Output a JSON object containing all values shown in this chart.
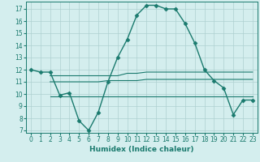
{
  "xlabel": "Humidex (Indice chaleur)",
  "line1": {
    "x": [
      0,
      1,
      2,
      3,
      4,
      5,
      6,
      7,
      8,
      9,
      10,
      11,
      12,
      13,
      14,
      15,
      16,
      17,
      18,
      19,
      20,
      21,
      22,
      23
    ],
    "y": [
      12,
      11.8,
      11.8,
      9.9,
      10.1,
      7.8,
      7.0,
      8.5,
      11.0,
      13.0,
      14.5,
      16.5,
      17.3,
      17.3,
      17.0,
      17.0,
      15.8,
      14.2,
      12.0,
      11.1,
      10.5,
      8.3,
      9.5,
      9.5
    ],
    "color": "#1a7a6e",
    "marker": "D",
    "markersize": 2.5,
    "linewidth": 1.0
  },
  "line2": {
    "x": [
      2,
      3,
      4,
      5,
      6,
      7,
      8,
      9,
      10,
      11,
      12,
      13,
      14,
      15,
      16,
      17,
      18,
      19,
      20,
      21,
      22,
      23
    ],
    "y": [
      11.0,
      11.0,
      11.0,
      11.0,
      11.0,
      11.0,
      11.1,
      11.1,
      11.1,
      11.1,
      11.2,
      11.2,
      11.2,
      11.2,
      11.2,
      11.2,
      11.2,
      11.2,
      11.2,
      11.2,
      11.2,
      11.2
    ],
    "color": "#1a7a6e",
    "linewidth": 0.8
  },
  "line3": {
    "x": [
      2,
      3,
      4,
      5,
      6,
      7,
      8,
      9,
      10,
      11,
      12,
      13,
      14,
      15,
      16,
      17,
      18,
      19,
      20,
      21,
      22,
      23
    ],
    "y": [
      9.8,
      9.8,
      9.8,
      9.8,
      9.8,
      9.8,
      9.8,
      9.8,
      9.8,
      9.8,
      9.8,
      9.8,
      9.8,
      9.8,
      9.8,
      9.8,
      9.8,
      9.8,
      9.8,
      9.8,
      9.8,
      9.8
    ],
    "color": "#1a7a6e",
    "linewidth": 0.8
  },
  "line4": {
    "x": [
      2,
      3,
      4,
      5,
      6,
      7,
      8,
      9,
      10,
      11,
      12,
      13,
      14,
      15,
      16,
      17,
      18,
      19,
      20,
      21,
      22,
      23
    ],
    "y": [
      11.5,
      11.5,
      11.5,
      11.5,
      11.5,
      11.5,
      11.5,
      11.5,
      11.7,
      11.7,
      11.8,
      11.8,
      11.8,
      11.8,
      11.8,
      11.8,
      11.8,
      11.8,
      11.8,
      11.8,
      11.8,
      11.8
    ],
    "color": "#1a7a6e",
    "linewidth": 0.8
  },
  "ylim": [
    6.8,
    17.6
  ],
  "xlim": [
    -0.5,
    23.5
  ],
  "yticks": [
    7,
    8,
    9,
    10,
    11,
    12,
    13,
    14,
    15,
    16,
    17
  ],
  "xticks": [
    0,
    1,
    2,
    3,
    4,
    5,
    6,
    7,
    8,
    9,
    10,
    11,
    12,
    13,
    14,
    15,
    16,
    17,
    18,
    19,
    20,
    21,
    22,
    23
  ],
  "bg_color": "#d4eeee",
  "grid_color": "#aed0d0",
  "line_color": "#1a7a6e",
  "label_fontsize": 6.5,
  "tick_fontsize": 5.5
}
